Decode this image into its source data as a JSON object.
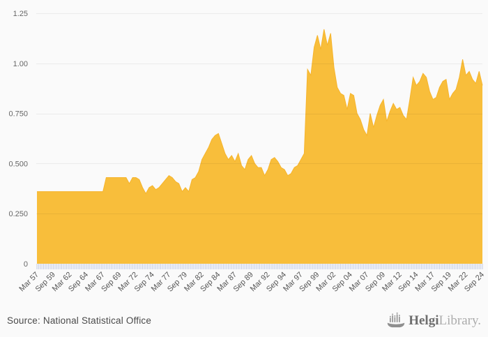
{
  "page": {
    "background_color": "#fafafa"
  },
  "chart_data": {
    "type": "area",
    "title": "",
    "legend": "none",
    "grid": "horizontal",
    "frequency": "semi-annual",
    "x_labels": [
      "Mar 57",
      "Sep 59",
      "Mar 62",
      "Sep 64",
      "Mar 67",
      "Sep 69",
      "Mar 72",
      "Sep 74",
      "Mar 77",
      "Sep 79",
      "Mar 82",
      "Sep 84",
      "Mar 87",
      "Sep 89",
      "Mar 92",
      "Sep 94",
      "Mar 97",
      "Sep 99",
      "Mar 02",
      "Sep 04",
      "Mar 07",
      "Sep 09",
      "Mar 12",
      "Sep 14",
      "Mar 17",
      "Sep 19",
      "Mar 22",
      "Sep 24"
    ],
    "x_label_every": 5,
    "values": [
      0.36,
      0.36,
      0.36,
      0.36,
      0.36,
      0.36,
      0.36,
      0.36,
      0.36,
      0.36,
      0.36,
      0.36,
      0.36,
      0.36,
      0.36,
      0.36,
      0.36,
      0.36,
      0.36,
      0.36,
      0.36,
      0.43,
      0.43,
      0.43,
      0.43,
      0.43,
      0.43,
      0.43,
      0.4,
      0.43,
      0.43,
      0.42,
      0.38,
      0.35,
      0.38,
      0.39,
      0.37,
      0.38,
      0.4,
      0.42,
      0.44,
      0.43,
      0.41,
      0.4,
      0.36,
      0.38,
      0.36,
      0.42,
      0.43,
      0.46,
      0.52,
      0.55,
      0.58,
      0.62,
      0.64,
      0.65,
      0.6,
      0.55,
      0.52,
      0.54,
      0.51,
      0.55,
      0.49,
      0.47,
      0.52,
      0.54,
      0.5,
      0.48,
      0.48,
      0.44,
      0.47,
      0.52,
      0.53,
      0.51,
      0.48,
      0.47,
      0.44,
      0.45,
      0.48,
      0.49,
      0.52,
      0.55,
      0.97,
      0.94,
      1.08,
      1.14,
      1.07,
      1.17,
      1.09,
      1.15,
      0.98,
      0.88,
      0.85,
      0.84,
      0.77,
      0.85,
      0.84,
      0.75,
      0.72,
      0.67,
      0.64,
      0.75,
      0.68,
      0.74,
      0.79,
      0.82,
      0.71,
      0.76,
      0.8,
      0.77,
      0.78,
      0.74,
      0.72,
      0.82,
      0.93,
      0.89,
      0.91,
      0.95,
      0.93,
      0.86,
      0.82,
      0.83,
      0.88,
      0.91,
      0.92,
      0.82,
      0.85,
      0.87,
      0.93,
      1.02,
      0.94,
      0.96,
      0.92,
      0.9,
      0.96,
      0.89
    ],
    "ylim": [
      0,
      1.25
    ],
    "ytick_values": [
      0,
      0.25,
      0.5,
      0.75,
      1,
      1.25
    ],
    "ytick_labels": [
      "0",
      "0.250",
      "0.500",
      "0.750",
      "1.00",
      "1.25"
    ],
    "colors": {
      "area_fill": "#f8be3b",
      "area_edge": "#f6b42c",
      "gridline": "#e7e7e7",
      "minor_tick": "#c2cbe4",
      "axis_text": "#666666",
      "x_label_text": "#555555"
    }
  },
  "footer": {
    "source_label": "Source: National Statistical Office",
    "logo": {
      "text_primary": "Helgi",
      "text_secondary": "Library."
    }
  }
}
